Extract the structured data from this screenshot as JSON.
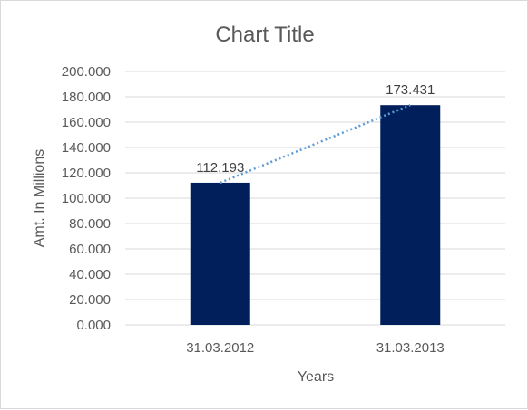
{
  "chart_data": {
    "type": "bar",
    "title": "Chart Title",
    "xlabel": "Years",
    "ylabel": "Amt. In Millions",
    "categories": [
      "31.03.2012",
      "31.03.2013"
    ],
    "values": [
      112.193,
      173.431
    ],
    "data_labels": [
      "112.193",
      "173.431"
    ],
    "ylim": [
      0,
      200
    ],
    "y_ticks": [
      0,
      20,
      40,
      60,
      80,
      100,
      120,
      140,
      160,
      180,
      200
    ],
    "y_tick_labels": [
      "0.000",
      "20.000",
      "40.000",
      "60.000",
      "80.000",
      "100.000",
      "120.000",
      "140.000",
      "160.000",
      "180.000",
      "200.000"
    ],
    "grid": true,
    "legend": "none",
    "trendline": "linear",
    "colors": {
      "bar": "#001f5b",
      "trendline": "#5b9bd5"
    }
  }
}
